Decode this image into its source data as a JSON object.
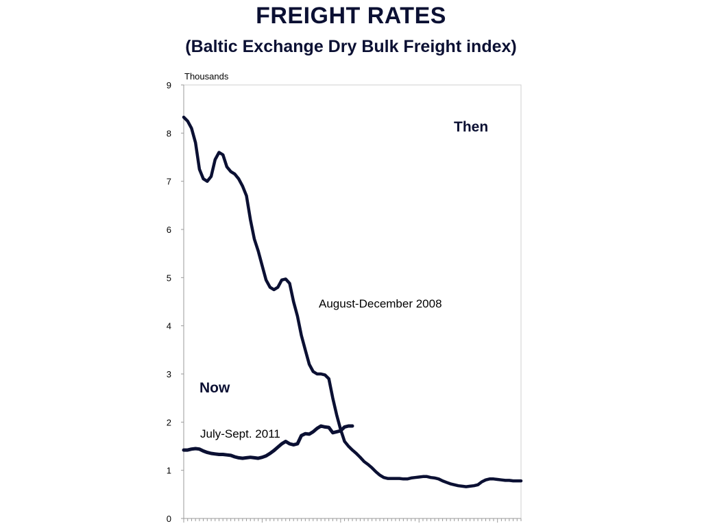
{
  "slide": {
    "title": "FREIGHT RATES",
    "subtitle": "(Baltic Exchange Dry Bulk Freight index)"
  },
  "chart_data": {
    "type": "line",
    "unit_label": "Thousands",
    "ylim": [
      0,
      9
    ],
    "yticks": [
      0,
      1,
      2,
      3,
      4,
      5,
      6,
      7,
      8,
      9
    ],
    "grid": false,
    "line_color": "#0b1033",
    "series": [
      {
        "label": "August-December 2008",
        "heading": "Then",
        "values": [
          8.33,
          8.25,
          8.1,
          7.8,
          7.25,
          7.05,
          7.0,
          7.1,
          7.45,
          7.6,
          7.55,
          7.3,
          7.2,
          7.15,
          7.05,
          6.9,
          6.7,
          6.2,
          5.8,
          5.55,
          5.25,
          4.95,
          4.8,
          4.75,
          4.8,
          4.95,
          4.97,
          4.88,
          4.5,
          4.2,
          3.8,
          3.5,
          3.2,
          3.05,
          3.0,
          3.0,
          2.98,
          2.9,
          2.5,
          2.15,
          1.85,
          1.6,
          1.5,
          1.42,
          1.35,
          1.27,
          1.18,
          1.12,
          1.05,
          0.97,
          0.9,
          0.85,
          0.83,
          0.83,
          0.83,
          0.83,
          0.82,
          0.82,
          0.84,
          0.85,
          0.86,
          0.87,
          0.87,
          0.85,
          0.84,
          0.82,
          0.78,
          0.75,
          0.72,
          0.7,
          0.68,
          0.67,
          0.66,
          0.67,
          0.68,
          0.7,
          0.76,
          0.8,
          0.82,
          0.82,
          0.81,
          0.8,
          0.79,
          0.79,
          0.78,
          0.78,
          0.78
        ]
      },
      {
        "label": "July-Sept. 2011",
        "heading": "Now",
        "values": [
          1.42,
          1.42,
          1.44,
          1.45,
          1.44,
          1.4,
          1.37,
          1.35,
          1.34,
          1.33,
          1.33,
          1.32,
          1.31,
          1.28,
          1.26,
          1.25,
          1.26,
          1.27,
          1.26,
          1.25,
          1.27,
          1.3,
          1.35,
          1.41,
          1.48,
          1.55,
          1.6,
          1.55,
          1.53,
          1.55,
          1.72,
          1.76,
          1.75,
          1.8,
          1.87,
          1.92,
          1.9,
          1.89,
          1.78,
          1.8,
          1.82,
          1.9,
          1.92,
          1.92
        ]
      }
    ]
  }
}
